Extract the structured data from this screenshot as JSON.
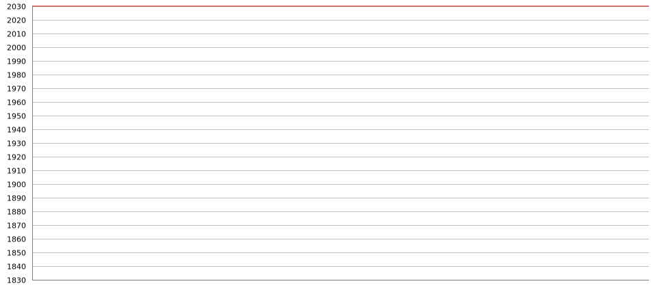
{
  "colors": {
    "background": "#ffffff",
    "grid": "#c0c0c0",
    "axis": "#808080",
    "series_red": "#c00000",
    "series_green": "#008000",
    "series_blue": "#0000cc"
  },
  "chart_data": {
    "type": "line",
    "title": "",
    "xlabel": "",
    "ylabel": "",
    "ylim": [
      1830,
      2030
    ],
    "y_ticks": [
      1830,
      1840,
      1850,
      1860,
      1870,
      1880,
      1890,
      1900,
      1910,
      1920,
      1930,
      1940,
      1950,
      1960,
      1970,
      1980,
      1990,
      2000,
      2010,
      2020,
      2030
    ],
    "y_tick_labels": [
      "1830",
      "1840",
      "1850",
      "1860",
      "1870",
      "1880",
      "1890",
      "1900",
      "1910",
      "1920",
      "1930",
      "1940",
      "1950",
      "1960",
      "1970",
      "1980",
      "1990",
      "2000",
      "2010",
      "2020",
      "2030"
    ],
    "grid": true,
    "legend": "none",
    "x_index_max": 180,
    "series": [
      {
        "color": "#c00000",
        "points": [
          [
            0,
            2030
          ],
          [
            6,
            2030
          ],
          [
            7,
            2030
          ],
          [
            8,
            2030
          ],
          [
            9,
            2030
          ],
          [
            10,
            2030
          ],
          [
            11,
            2030
          ],
          [
            12,
            2030
          ],
          [
            13,
            2030
          ],
          [
            14,
            2030
          ],
          [
            15,
            2030
          ],
          [
            16,
            2030
          ],
          [
            17,
            2030
          ],
          [
            18,
            2030
          ],
          [
            19,
            2030
          ],
          [
            20,
            2030
          ],
          [
            21,
            2030
          ],
          [
            22,
            2030
          ],
          [
            23,
            2030
          ],
          [
            24,
            2030
          ],
          [
            25,
            2030
          ],
          [
            26,
            2030
          ],
          [
            27,
            2030
          ],
          [
            28,
            2030
          ],
          [
            29,
            2030
          ],
          [
            30,
            2030
          ],
          [
            31,
            2030
          ],
          [
            32,
            2030
          ],
          [
            33,
            2030
          ],
          [
            34,
            2030
          ],
          [
            35,
            2030
          ],
          [
            36,
            2030
          ],
          [
            37,
            2030
          ],
          [
            38,
            2030
          ],
          [
            39,
            2030
          ],
          [
            40,
            2030
          ],
          [
            41,
            2030
          ],
          [
            42,
            2030
          ],
          [
            43,
            2030
          ],
          [
            44,
            2030
          ],
          [
            45,
            2030
          ],
          [
            46,
            2030
          ],
          [
            47,
            2030
          ],
          [
            48,
            2030
          ],
          [
            49,
            2030
          ],
          [
            50,
            2030
          ],
          [
            51,
            2030
          ],
          [
            52,
            2030
          ],
          [
            53,
            2030
          ],
          [
            54,
            2030
          ],
          [
            55,
            2030
          ],
          [
            56,
            2030
          ],
          [
            57,
            2030
          ],
          [
            58,
            2030
          ],
          [
            59,
            2030
          ],
          [
            60,
            2030
          ],
          [
            61,
            2030
          ],
          [
            62,
            2030
          ],
          [
            63,
            2030
          ],
          [
            64,
            2030
          ],
          [
            65,
            2030
          ],
          [
            66,
            2030
          ],
          [
            67,
            2030
          ],
          [
            68,
            2030
          ],
          [
            69,
            2030
          ],
          [
            70,
            2030
          ],
          [
            71,
            2030
          ],
          [
            72,
            2030
          ],
          [
            73,
            2030
          ],
          [
            74,
            2030
          ],
          [
            75,
            2030
          ],
          [
            76,
            2030
          ],
          [
            77,
            2030
          ],
          [
            78,
            2030
          ],
          [
            79,
            2030
          ],
          [
            80,
            2030
          ],
          [
            81,
            2030
          ],
          [
            82,
            2030
          ],
          [
            83,
            2030
          ],
          [
            84,
            2030
          ],
          [
            85,
            2030
          ],
          [
            86,
            2030
          ],
          [
            87,
            2030
          ],
          [
            88,
            2030
          ],
          [
            89,
            2030
          ],
          [
            90,
            2030
          ],
          [
            91,
            2030
          ],
          [
            92,
            2030
          ],
          [
            93,
            2030
          ],
          [
            94,
            2030
          ],
          [
            95,
            2030
          ],
          [
            96,
            2030
          ],
          [
            97,
            2030
          ],
          [
            98,
            2030
          ],
          [
            99,
            2030
          ],
          [
            100,
            2030
          ],
          [
            101,
            2030
          ],
          [
            102,
            2030
          ],
          [
            103,
            2030
          ],
          [
            104,
            2030
          ],
          [
            105,
            2030
          ],
          [
            106,
            2030
          ],
          [
            107,
            2030
          ],
          [
            108,
            2030
          ],
          [
            109,
            2030
          ],
          [
            110,
            2030
          ],
          [
            111,
            2030
          ],
          [
            112,
            2030
          ],
          [
            113,
            2030
          ],
          [
            114,
            2030
          ],
          [
            115,
            2030
          ],
          [
            116,
            2030
          ],
          [
            117,
            2030
          ],
          [
            118,
            2030
          ],
          [
            119,
            2030
          ],
          [
            120,
            2030
          ],
          [
            121,
            2030
          ],
          [
            122,
            2030
          ],
          [
            123,
            2030
          ],
          [
            124,
            2030
          ],
          [
            125,
            2030
          ],
          [
            126,
            2030
          ],
          [
            127,
            2030
          ],
          [
            128,
            2030
          ],
          [
            129,
            2030
          ],
          [
            130,
            2030
          ],
          [
            131,
            2030
          ],
          [
            132,
            2030
          ],
          [
            133,
            2030
          ],
          [
            134,
            2030
          ],
          [
            135,
            2030
          ],
          [
            136,
            2030
          ],
          [
            137,
            2030
          ],
          [
            138,
            2030
          ],
          [
            139,
            2030
          ],
          [
            140,
            2030
          ],
          [
            141,
            2030
          ],
          [
            142,
            2030
          ],
          [
            143,
            2030
          ],
          [
            144,
            2030
          ],
          [
            145,
            2030
          ],
          [
            146,
            2030
          ],
          [
            147,
            2030
          ],
          [
            148,
            2030
          ],
          [
            149,
            2030
          ],
          [
            150,
            2030
          ],
          [
            151,
            2030
          ],
          [
            152,
            2030
          ],
          [
            153,
            2030
          ],
          [
            154,
            2030
          ],
          [
            155,
            2030
          ],
          [
            156,
            2030
          ],
          [
            157,
            2030
          ],
          [
            158,
            2030
          ],
          [
            159,
            2030
          ],
          [
            160,
            2030
          ],
          [
            161,
            2030
          ],
          [
            162,
            2030
          ],
          [
            163,
            2030
          ],
          [
            164,
            2030
          ],
          [
            165,
            2030
          ],
          [
            166,
            2030
          ],
          [
            167,
            2030
          ],
          [
            168,
            2030
          ],
          [
            169,
            2030
          ],
          [
            170,
            2030
          ],
          [
            171,
            2030
          ],
          [
            172,
            2030
          ],
          [
            173,
            2030
          ],
          [
            174,
            2030
          ],
          [
            175,
            2030
          ],
          [
            176,
            2030
          ],
          [
            177,
            2030
          ],
          [
            178,
            2030
          ],
          [
            179,
            2030
          ],
          [
            180,
            2030
          ]
        ]
      }
    ]
  }
}
